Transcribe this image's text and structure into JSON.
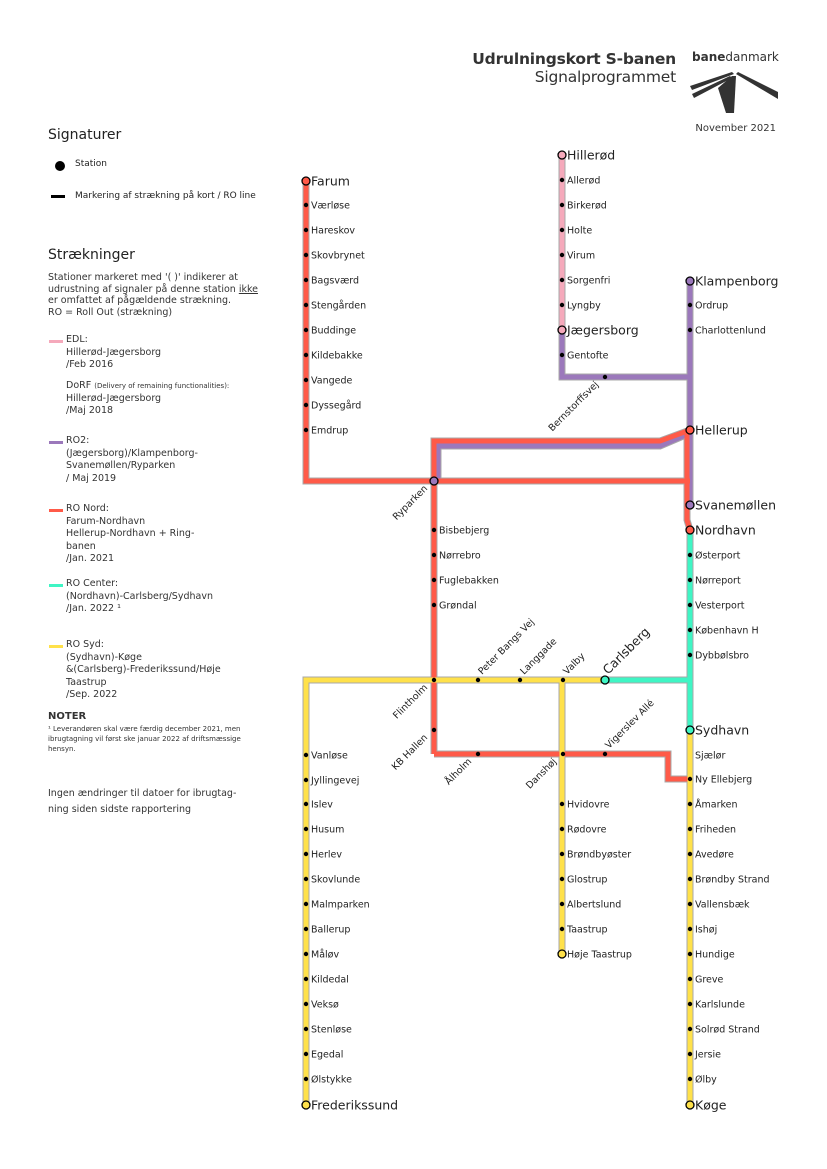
{
  "header": {
    "title": "Udrulningskort S-banen",
    "subtitle": "Signalprogrammet",
    "logo_bold": "bane",
    "logo_regular": "danmark",
    "date": "November 2021"
  },
  "legend": {
    "signatures_heading": "Signaturer",
    "station_label": "Station",
    "line_label": "Markering af strækning på kort / RO line",
    "sections_heading": "Strækninger",
    "intro_1": "Stationer markeret med '( )' indikerer at udrustning af signaler på denne station ",
    "intro_ikke": "ikke",
    "intro_2": " er omfattet af pågældende strækning.",
    "intro_ro": "RO = Roll Out (strækning)",
    "items": [
      {
        "title": "EDL:",
        "lines": [
          "Hillerød-Jægersborg",
          "/Feb 2016"
        ],
        "color": "#f5a9bb"
      },
      {
        "title": "DoRF",
        "note": "(Delivery of remaining functionalities):",
        "lines": [
          "Hillerød-Jægersborg",
          "/Maj 2018"
        ]
      },
      {
        "title": "RO2:",
        "lines": [
          "(Jægersborg)/Klampenborg-",
          "Svanemøllen/Ryparken",
          "/ Maj 2019"
        ],
        "color": "#9b78bb"
      },
      {
        "title": "RO Nord:",
        "lines": [
          "Farum-Nordhavn",
          "Hellerup-Nordhavn + Ring-",
          "banen",
          "/Jan. 2021"
        ],
        "color": "#ff5a48"
      },
      {
        "title": "RO Center:",
        "lines": [
          "(Nordhavn)-Carlsberg/Sydhavn",
          "/Jan. 2022 ¹"
        ],
        "color": "#3ff5c4"
      },
      {
        "title": "RO Syd:",
        "lines": [
          "(Sydhavn)-Køge",
          "&(Carlsberg)-Frederikssund/Høje",
          "Taastrup",
          "/Sep. 2022"
        ],
        "color": "#ffe14a"
      }
    ],
    "notes_heading": "NOTER",
    "notes_text": "¹ Leverandøren skal være færdig december 2021, men ibrugtagning vil først ske januar 2022 af driftsmæssige hensyn.",
    "footer_text_1": "Ingen ændringer til datoer for ibrugtag-",
    "footer_text_2": "ning siden sidste rapportering"
  },
  "colors": {
    "edl": "#f5a9bb",
    "ro2": "#9b78bb",
    "ro_nord": "#ff5a48",
    "ro_center": "#3ff5c4",
    "ro_syd": "#ffe14a",
    "outline": "#a8a8a8"
  },
  "map": {
    "stations": [
      "Farum",
      "Værløse",
      "Hareskov",
      "Skovbrynet",
      "Bagsværd",
      "Stengården",
      "Buddinge",
      "Kildebakke",
      "Vangede",
      "Dyssegård",
      "Emdrup",
      "Hillerød",
      "Allerød",
      "Birkerød",
      "Holte",
      "Virum",
      "Sorgenfri",
      "Lyngby",
      "Jægersborg",
      "Gentofte",
      "Bernstorffsvej",
      "Klampenborg",
      "Ordrup",
      "Charlottenlund",
      "Hellerup",
      "Svanemøllen",
      "Nordhavn",
      "Ryparken",
      "Bisbebjerg",
      "Nørrebro",
      "Fuglebakken",
      "Grøndal",
      "Flintholm",
      "KB Hallen",
      "Ålholm",
      "Danshøj",
      "Vigerslev Allé",
      "Østerport",
      "Nørreport",
      "Vesterport",
      "København H",
      "Dybbølsbro",
      "Carlsberg",
      "Sydhavn",
      "Peter Bangs Vej",
      "Langgade",
      "Valby",
      "Vanløse",
      "Jyllingevej",
      "Islev",
      "Husum",
      "Herlev",
      "Skovlunde",
      "Malmparken",
      "Ballerup",
      "Måløv",
      "Kildedal",
      "Veksø",
      "Stenløse",
      "Egedal",
      "Ølstykke",
      "Frederikssund",
      "Hvidovre",
      "Rødovre",
      "Brøndbyøster",
      "Glostrup",
      "Albertslund",
      "Taastrup",
      "Høje Taastrup",
      "Sjælør",
      "Ny Ellebjerg",
      "Åmarken",
      "Friheden",
      "Avedøre",
      "Brøndby Strand",
      "Vallensbæk",
      "Ishøj",
      "Hundige",
      "Greve",
      "Karlslunde",
      "Solrød Strand",
      "Jersie",
      "Ølby",
      "Køge"
    ]
  }
}
